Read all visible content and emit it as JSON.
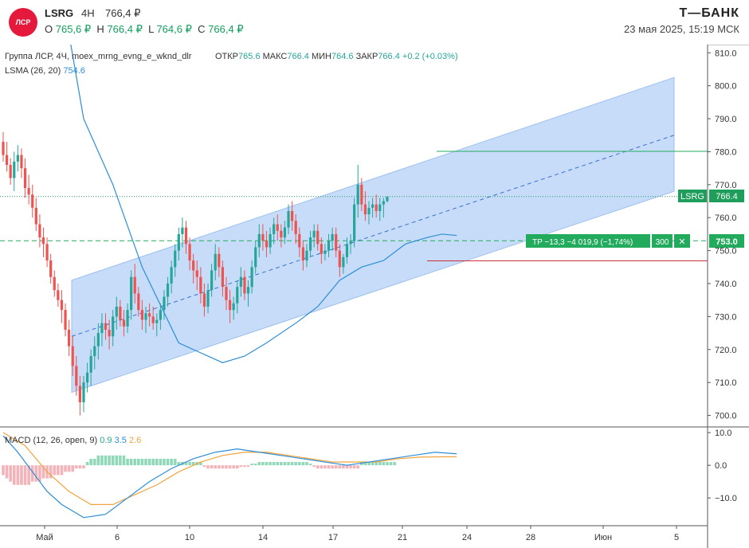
{
  "header": {
    "logo_text": "ЛСР",
    "ticker": "LSRG",
    "timeframe": "4Н",
    "last_price": "766,4 ₽",
    "ohlc": {
      "o_label": "O",
      "o_value": "765,6 ₽",
      "h_label": "H",
      "h_value": "766,4 ₽",
      "l_label": "L",
      "l_value": "764,6 ₽",
      "c_label": "C",
      "c_value": "766,4 ₽"
    },
    "brand": "Т—БАНК",
    "datetime": "23 мая 2025, 15:19 МСК"
  },
  "legend": {
    "source_line": "Группа ЛСР, 4Ч, moex_mrng_evng_e_wknd_dlr",
    "open_label": "ОТКР",
    "open_value": "765.6",
    "high_label": "МАКС",
    "high_value": "766.4",
    "low_label": "МИН",
    "low_value": "764.6",
    "close_label": "ЗАКР",
    "close_value": "766.4",
    "change": "+0.2 (+0.03%)",
    "lsma_label": "LSMA (26, 20)",
    "lsma_value": "754.6",
    "macd_label": "MACD (12, 26, open, 9)",
    "macd_v1": "0.9",
    "macd_v2": "3.5",
    "macd_v3": "2.6"
  },
  "position": {
    "text": "TP −13,3 −4 019,9 (−1,74%)",
    "qty": "300",
    "close_symbol": "✕",
    "price_label": "753.0"
  },
  "current": {
    "symbol": "LSRG",
    "price_label": "766.4"
  },
  "colors": {
    "up": "#26a69a",
    "down": "#ef5350",
    "lsma": "#2d8ed6",
    "channel_fill": "#bcd6f7",
    "macd": "#2d8ed6",
    "signal": "#f0a43c",
    "hist_up": "#8fd8b8",
    "hist_down": "#f3b3b8",
    "position": "#22ab5c",
    "stop": "#cc2e3c"
  },
  "chart_data": {
    "type": "candlestick",
    "price_axis": {
      "ticks": [
        700,
        710,
        720,
        730,
        740,
        750,
        760,
        770,
        780,
        790,
        800,
        810
      ],
      "ylim": [
        697,
        812
      ]
    },
    "macd_axis": {
      "ticks": [
        10.0,
        0.0,
        -10.0
      ],
      "tick_labels": [
        "10.0",
        "0.0",
        "−10.0"
      ],
      "ylim": [
        -18,
        11
      ]
    },
    "x_ticks": [
      "Май",
      "6",
      "10",
      "14",
      "17",
      "21",
      "24",
      "28",
      "Июн",
      "5"
    ],
    "levels": {
      "current": 766.4,
      "entry": 753.0,
      "target": 780.1,
      "stop": 746.9
    },
    "channel": {
      "start_bar": 0,
      "end_bar": 124,
      "lower": [
        707,
        768
      ],
      "mid": [
        724,
        785
      ],
      "upper": [
        741,
        802.5
      ]
    },
    "candles": [
      [
        783,
        786,
        777,
        779
      ],
      [
        779,
        783,
        774,
        776
      ],
      [
        776,
        778,
        770,
        772
      ],
      [
        772,
        780,
        768,
        777
      ],
      [
        777,
        782,
        774,
        779
      ],
      [
        779,
        781,
        772,
        775
      ],
      [
        775,
        778,
        766,
        769
      ],
      [
        769,
        773,
        764,
        767
      ],
      [
        767,
        770,
        760,
        763
      ],
      [
        763,
        766,
        756,
        758
      ],
      [
        758,
        761,
        751,
        754
      ],
      [
        754,
        757,
        748,
        752
      ],
      [
        752,
        754,
        745,
        747
      ],
      [
        747,
        749,
        740,
        742
      ],
      [
        742,
        744,
        736,
        738
      ],
      [
        738,
        740,
        733,
        735
      ],
      [
        735,
        738,
        728,
        732
      ],
      [
        732,
        734,
        724,
        726
      ],
      [
        726,
        729,
        718,
        721
      ],
      [
        721,
        724,
        712,
        715
      ],
      [
        715,
        718,
        706,
        709
      ],
      [
        709,
        712,
        700,
        704
      ],
      [
        704,
        712,
        701,
        710
      ],
      [
        710,
        716,
        707,
        713
      ],
      [
        713,
        720,
        709,
        718
      ],
      [
        718,
        724,
        714,
        721
      ],
      [
        721,
        728,
        717,
        725
      ],
      [
        725,
        731,
        721,
        728
      ],
      [
        728,
        731,
        723,
        726
      ],
      [
        726,
        729,
        720,
        724
      ],
      [
        724,
        732,
        721,
        730
      ],
      [
        730,
        736,
        726,
        733
      ],
      [
        733,
        735,
        727,
        729
      ],
      [
        729,
        732,
        724,
        727
      ],
      [
        727,
        734,
        725,
        732
      ],
      [
        732,
        744,
        729,
        742
      ],
      [
        742,
        746,
        734,
        737
      ],
      [
        737,
        739,
        730,
        732
      ],
      [
        732,
        735,
        726,
        729
      ],
      [
        729,
        733,
        725,
        731
      ],
      [
        731,
        734,
        727,
        730
      ],
      [
        730,
        733,
        726,
        728
      ],
      [
        728,
        731,
        724,
        729
      ],
      [
        729,
        734,
        726,
        732
      ],
      [
        732,
        738,
        729,
        736
      ],
      [
        736,
        742,
        733,
        740
      ],
      [
        740,
        747,
        737,
        745
      ],
      [
        745,
        752,
        742,
        750
      ],
      [
        750,
        757,
        747,
        755
      ],
      [
        755,
        760,
        751,
        757
      ],
      [
        757,
        759,
        749,
        752
      ],
      [
        752,
        754,
        744,
        747
      ],
      [
        747,
        749,
        740,
        744
      ],
      [
        744,
        747,
        738,
        742
      ],
      [
        742,
        745,
        734,
        737
      ],
      [
        737,
        740,
        730,
        733
      ],
      [
        733,
        740,
        731,
        738
      ],
      [
        738,
        746,
        736,
        744
      ],
      [
        744,
        752,
        741,
        749
      ],
      [
        749,
        751,
        742,
        745
      ],
      [
        745,
        747,
        736,
        739
      ],
      [
        739,
        742,
        732,
        735
      ],
      [
        735,
        738,
        728,
        732
      ],
      [
        732,
        736,
        729,
        734
      ],
      [
        734,
        741,
        731,
        739
      ],
      [
        739,
        745,
        736,
        742
      ],
      [
        742,
        744,
        735,
        737
      ],
      [
        737,
        741,
        733,
        739
      ],
      [
        739,
        747,
        737,
        745
      ],
      [
        745,
        753,
        743,
        751
      ],
      [
        751,
        758,
        748,
        755
      ],
      [
        755,
        758,
        750,
        753
      ],
      [
        753,
        756,
        748,
        751
      ],
      [
        751,
        757,
        749,
        755
      ],
      [
        755,
        760,
        752,
        758
      ],
      [
        758,
        761,
        753,
        756
      ],
      [
        756,
        758,
        751,
        754
      ],
      [
        754,
        759,
        752,
        757
      ],
      [
        757,
        764,
        755,
        762
      ],
      [
        762,
        765,
        756,
        759
      ],
      [
        759,
        761,
        752,
        755
      ],
      [
        755,
        757,
        748,
        751
      ],
      [
        751,
        753,
        744,
        747
      ],
      [
        747,
        752,
        745,
        750
      ],
      [
        750,
        756,
        748,
        754
      ],
      [
        754,
        758,
        751,
        756
      ],
      [
        756,
        758,
        750,
        752
      ],
      [
        752,
        754,
        746,
        749
      ],
      [
        749,
        752,
        747,
        750
      ],
      [
        750,
        755,
        748,
        753
      ],
      [
        753,
        757,
        750,
        755
      ],
      [
        755,
        757,
        748,
        750
      ],
      [
        750,
        752,
        742,
        745
      ],
      [
        745,
        749,
        743,
        748
      ],
      [
        748,
        754,
        746,
        752
      ],
      [
        752,
        755,
        749,
        753
      ],
      [
        753,
        766,
        751,
        764
      ],
      [
        764,
        776,
        760,
        770
      ],
      [
        770,
        772,
        762,
        764
      ],
      [
        764,
        768,
        759,
        761
      ],
      [
        761,
        765,
        758,
        763
      ],
      [
        763,
        766,
        760,
        764
      ],
      [
        764,
        767,
        760,
        762
      ],
      [
        762,
        766,
        759,
        764
      ],
      [
        764,
        766,
        760,
        765
      ],
      [
        765,
        766.4,
        764.6,
        766.4
      ]
    ],
    "lsma": [
      [
        12,
        854
      ],
      [
        22,
        790
      ],
      [
        30,
        770
      ],
      [
        38,
        745
      ],
      [
        48,
        722
      ],
      [
        56,
        718
      ],
      [
        60,
        716
      ],
      [
        66,
        718
      ],
      [
        72,
        722
      ],
      [
        80,
        728
      ],
      [
        86,
        733
      ],
      [
        92,
        741
      ],
      [
        98,
        745
      ],
      [
        104,
        747
      ],
      [
        110,
        752
      ],
      [
        116,
        754
      ],
      [
        120,
        755
      ],
      [
        124,
        754.6
      ]
    ],
    "macd_series": {
      "macd": [
        [
          0,
          9
        ],
        [
          4,
          4
        ],
        [
          8,
          -2
        ],
        [
          12,
          -8
        ],
        [
          16,
          -12
        ],
        [
          22,
          -16
        ],
        [
          28,
          -15
        ],
        [
          34,
          -10
        ],
        [
          40,
          -5
        ],
        [
          46,
          -1
        ],
        [
          52,
          2
        ],
        [
          58,
          4
        ],
        [
          64,
          5
        ],
        [
          70,
          4
        ],
        [
          76,
          3
        ],
        [
          82,
          2
        ],
        [
          88,
          1
        ],
        [
          94,
          0
        ],
        [
          100,
          1
        ],
        [
          106,
          2
        ],
        [
          112,
          3
        ],
        [
          118,
          4
        ],
        [
          124,
          3.5
        ]
      ],
      "signal": [
        [
          0,
          10
        ],
        [
          6,
          6
        ],
        [
          12,
          -2
        ],
        [
          18,
          -8
        ],
        [
          24,
          -12
        ],
        [
          30,
          -12
        ],
        [
          36,
          -9
        ],
        [
          42,
          -6
        ],
        [
          48,
          -2
        ],
        [
          54,
          1
        ],
        [
          60,
          3
        ],
        [
          66,
          4
        ],
        [
          72,
          4
        ],
        [
          78,
          3
        ],
        [
          84,
          2
        ],
        [
          90,
          1
        ],
        [
          96,
          1
        ],
        [
          102,
          1
        ],
        [
          108,
          2
        ],
        [
          114,
          2.5
        ],
        [
          120,
          2.6
        ],
        [
          124,
          2.6
        ]
      ],
      "hist": [
        -3,
        -4,
        -5,
        -6,
        -6,
        -6,
        -6,
        -6,
        -5,
        -5,
        -5,
        -4,
        -4,
        -4,
        -3,
        -3,
        -3,
        -2,
        -2,
        -2,
        -1,
        -1,
        -1,
        1,
        2,
        2,
        3,
        3,
        3,
        3,
        3,
        3,
        3,
        3,
        2,
        2,
        2,
        2,
        2,
        2,
        2,
        2,
        2,
        2,
        2,
        2,
        2,
        2,
        1,
        1,
        1,
        1,
        1,
        1,
        1,
        -0.5,
        -1,
        -1,
        -1,
        -1,
        -1,
        -1,
        -1,
        -1,
        -1,
        -0.5,
        -0.5,
        -0.5,
        0.5,
        0.5,
        1,
        1,
        1,
        1,
        1,
        1,
        1,
        1,
        1,
        1,
        1,
        1,
        1,
        1,
        0.5,
        -0.5,
        -1,
        -1,
        -1,
        -1,
        -1,
        -1,
        -1,
        -1,
        -1,
        -1,
        -1,
        -1,
        1,
        1,
        1,
        1,
        1,
        1,
        1,
        1,
        1,
        1
      ]
    }
  }
}
